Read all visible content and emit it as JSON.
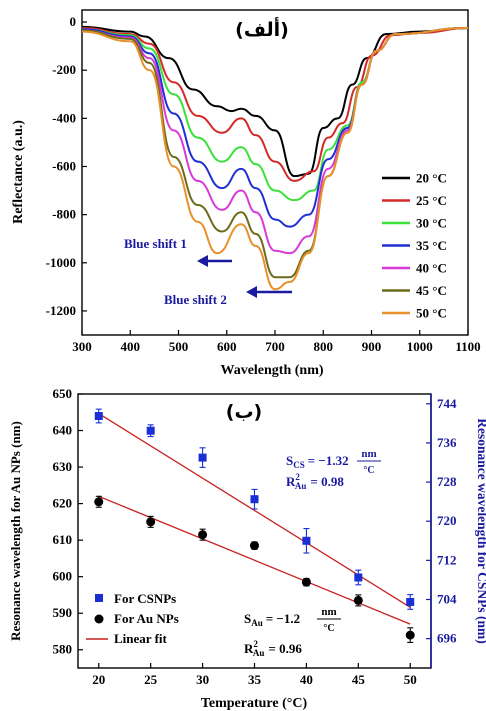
{
  "chart_data": [
    {
      "type": "line",
      "panel_label": "(ألف)",
      "xlabel": "Wavelength (nm)",
      "ylabel": "Reflectance (a.u.)",
      "xlim": [
        300,
        1100
      ],
      "ylim": [
        -1300,
        50
      ],
      "xticks": [
        300,
        400,
        500,
        600,
        700,
        800,
        900,
        1000,
        1100
      ],
      "yticks": [
        0,
        -200,
        -400,
        -600,
        -800,
        -1000,
        -1200
      ],
      "legend_position": "right",
      "annotations": [
        "Blue shift 1",
        "Blue shift 2"
      ],
      "series": [
        {
          "name": "20 °C",
          "color": "#000000",
          "points": [
            [
              300,
              -20
            ],
            [
              400,
              -40
            ],
            [
              430,
              -60
            ],
            [
              480,
              -150
            ],
            [
              530,
              -280
            ],
            [
              580,
              -350
            ],
            [
              610,
              -370
            ],
            [
              630,
              -360
            ],
            [
              660,
              -390
            ],
            [
              700,
              -450
            ],
            [
              740,
              -640
            ],
            [
              770,
              -630
            ],
            [
              800,
              -440
            ],
            [
              830,
              -400
            ],
            [
              860,
              -260
            ],
            [
              890,
              -150
            ],
            [
              930,
              -50
            ],
            [
              1000,
              -40
            ],
            [
              1100,
              -25
            ]
          ]
        },
        {
          "name": "25 °C",
          "color": "#d42a2a",
          "points": [
            [
              300,
              -25
            ],
            [
              400,
              -50
            ],
            [
              440,
              -90
            ],
            [
              490,
              -250
            ],
            [
              540,
              -390
            ],
            [
              590,
              -460
            ],
            [
              630,
              -400
            ],
            [
              660,
              -470
            ],
            [
              700,
              -580
            ],
            [
              740,
              -660
            ],
            [
              780,
              -620
            ],
            [
              810,
              -480
            ],
            [
              840,
              -420
            ],
            [
              870,
              -270
            ],
            [
              900,
              -140
            ],
            [
              940,
              -55
            ],
            [
              1000,
              -45
            ],
            [
              1100,
              -25
            ]
          ]
        },
        {
          "name": "30 °C",
          "color": "#3be03b",
          "points": [
            [
              300,
              -30
            ],
            [
              400,
              -55
            ],
            [
              440,
              -110
            ],
            [
              490,
              -300
            ],
            [
              540,
              -480
            ],
            [
              590,
              -580
            ],
            [
              630,
              -520
            ],
            [
              660,
              -590
            ],
            [
              700,
              -700
            ],
            [
              740,
              -740
            ],
            [
              780,
              -700
            ],
            [
              810,
              -530
            ],
            [
              850,
              -430
            ],
            [
              880,
              -250
            ],
            [
              910,
              -120
            ],
            [
              950,
              -50
            ],
            [
              1100,
              -25
            ]
          ]
        },
        {
          "name": "35 °C",
          "color": "#1f2fd4",
          "points": [
            [
              300,
              -30
            ],
            [
              400,
              -60
            ],
            [
              440,
              -130
            ],
            [
              490,
              -380
            ],
            [
              540,
              -580
            ],
            [
              590,
              -690
            ],
            [
              630,
              -610
            ],
            [
              660,
              -690
            ],
            [
              700,
              -820
            ],
            [
              730,
              -850
            ],
            [
              770,
              -800
            ],
            [
              810,
              -570
            ],
            [
              850,
              -440
            ],
            [
              880,
              -260
            ],
            [
              910,
              -120
            ],
            [
              950,
              -50
            ],
            [
              1100,
              -25
            ]
          ]
        },
        {
          "name": "40 °C",
          "color": "#d83ad8",
          "points": [
            [
              300,
              -35
            ],
            [
              400,
              -65
            ],
            [
              440,
              -150
            ],
            [
              490,
              -450
            ],
            [
              540,
              -660
            ],
            [
              590,
              -780
            ],
            [
              630,
              -700
            ],
            [
              660,
              -790
            ],
            [
              700,
              -950
            ],
            [
              730,
              -960
            ],
            [
              770,
              -890
            ],
            [
              810,
              -610
            ],
            [
              850,
              -450
            ],
            [
              880,
              -260
            ],
            [
              910,
              -120
            ],
            [
              950,
              -50
            ],
            [
              1100,
              -25
            ]
          ]
        },
        {
          "name": "45 °C",
          "color": "#6b6b1a",
          "points": [
            [
              300,
              -35
            ],
            [
              400,
              -70
            ],
            [
              440,
              -170
            ],
            [
              490,
              -560
            ],
            [
              540,
              -760
            ],
            [
              590,
              -870
            ],
            [
              630,
              -790
            ],
            [
              660,
              -880
            ],
            [
              700,
              -1060
            ],
            [
              730,
              -1060
            ],
            [
              770,
              -950
            ],
            [
              810,
              -640
            ],
            [
              850,
              -460
            ],
            [
              880,
              -260
            ],
            [
              910,
              -120
            ],
            [
              950,
              -50
            ],
            [
              1100,
              -25
            ]
          ]
        },
        {
          "name": "50 °C",
          "color": "#e8902a",
          "points": [
            [
              300,
              -40
            ],
            [
              400,
              -80
            ],
            [
              440,
              -200
            ],
            [
              490,
              -600
            ],
            [
              540,
              -830
            ],
            [
              580,
              -960
            ],
            [
              630,
              -840
            ],
            [
              660,
              -930
            ],
            [
              700,
              -1110
            ],
            [
              730,
              -1080
            ],
            [
              770,
              -960
            ],
            [
              810,
              -640
            ],
            [
              850,
              -460
            ],
            [
              880,
              -260
            ],
            [
              910,
              -120
            ],
            [
              950,
              -50
            ],
            [
              1100,
              -25
            ]
          ]
        }
      ]
    },
    {
      "type": "scatter",
      "panel_label": "(ب)",
      "xlabel": "Temperature (°C)",
      "ylabel": "Resonance wavelength for Au NPs (nm)",
      "y2label": "Resonance wavelength for CSNPs (nm)",
      "xlim": [
        18,
        52
      ],
      "ylim": [
        575,
        650
      ],
      "y2lim": [
        690,
        746
      ],
      "xticks": [
        20,
        25,
        30,
        35,
        40,
        45,
        50
      ],
      "yticks": [
        580,
        590,
        600,
        610,
        620,
        630,
        640,
        650
      ],
      "y2ticks": [
        696,
        704,
        712,
        720,
        728,
        736,
        744
      ],
      "legend_position": "bottom-left",
      "legend": [
        "For CSNPs",
        "For Au NPs",
        "Linear fit"
      ],
      "series": [
        {
          "name": "For CSNPs",
          "axis": "right",
          "marker": "square",
          "color": "#1a2fd4",
          "x": [
            20,
            25,
            30,
            35,
            40,
            45,
            50
          ],
          "y": [
            741.5,
            738.5,
            733,
            724.5,
            716,
            708.5,
            703.5
          ],
          "err": [
            1.4,
            1.2,
            2.0,
            2.0,
            2.5,
            1.5,
            1.5
          ]
        },
        {
          "name": "For Au NPs",
          "axis": "left",
          "marker": "circle",
          "color": "#000000",
          "x": [
            20,
            25,
            30,
            35,
            40,
            45,
            50
          ],
          "y": [
            620.5,
            615,
            611.5,
            608.5,
            598.5,
            593.5,
            584
          ],
          "err": [
            1.5,
            1.5,
            1.5,
            1.0,
            1.0,
            1.5,
            2.0
          ]
        },
        {
          "name": "Linear fit",
          "color": "#c81e1e",
          "lines": [
            {
              "axis": "right",
              "x": [
                20,
                50
              ],
              "y": [
                742,
                702.4
              ]
            },
            {
              "axis": "left",
              "x": [
                20,
                50
              ],
              "y": [
                622,
                587
              ]
            }
          ]
        }
      ],
      "annotations": {
        "cs_slope_lhs": "S",
        "cs_slope_sub": "CS",
        "cs_slope_eq": "= −1.32",
        "cs_r2_lhs": "R",
        "cs_r2_sub": "Au",
        "cs_r2_sup": "2",
        "cs_r2_val": "= 0.98",
        "au_slope_lhs": "S",
        "au_slope_sub": "Au",
        "au_slope_eq": "= −1.2",
        "au_r2_lhs": "R",
        "au_r2_sub": "Au",
        "au_r2_sup": "2",
        "au_r2_val": "= 0.96",
        "unit_num": "nm",
        "unit_den": "°C"
      }
    }
  ]
}
